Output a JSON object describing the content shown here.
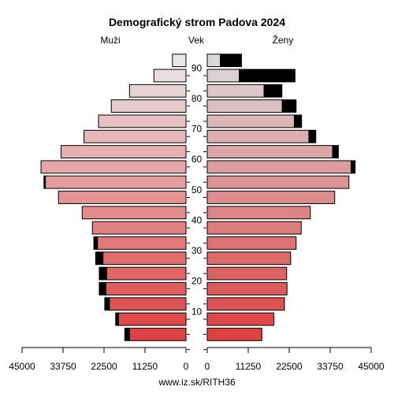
{
  "chart_data": {
    "type": "bar",
    "title": "Demografický strom Padova 2024",
    "left_label": "Muži",
    "center_label": "Vek",
    "right_label": "Ženy",
    "footer": "www.iz.sk/RITH36",
    "x_max": 45000,
    "x_ticks": [
      0,
      11250,
      22500,
      33750,
      45000
    ],
    "x_tick_labels_left": [
      "45000",
      "33750",
      "22500",
      "11250",
      "0"
    ],
    "x_tick_labels_right": [
      "0",
      "11250",
      "22500",
      "33750",
      "45000"
    ],
    "age_groups": [
      "0-4",
      "5-9",
      "10-14",
      "15-19",
      "20-24",
      "25-29",
      "30-34",
      "35-39",
      "40-44",
      "45-49",
      "50-54",
      "55-59",
      "60-64",
      "65-69",
      "70-74",
      "75-79",
      "80-84",
      "85-89",
      "90+"
    ],
    "age_tick_labels": [
      "10",
      "20",
      "30",
      "40",
      "50",
      "60",
      "70",
      "80",
      "90"
    ],
    "series": [
      {
        "name": "Muži",
        "values": [
          15500,
          18500,
          21000,
          22000,
          21800,
          22800,
          24300,
          25700,
          28500,
          35000,
          38600,
          39800,
          34300,
          28000,
          24000,
          20500,
          15500,
          8800,
          3700
        ]
      },
      {
        "name": "Muži (čierna časť)",
        "values": [
          1300,
          800,
          1300,
          1800,
          2000,
          2000,
          1000,
          0,
          0,
          0,
          400,
          0,
          0,
          0,
          0,
          0,
          0,
          0,
          0
        ]
      },
      {
        "name": "Ženy",
        "values": [
          15000,
          18300,
          21200,
          21900,
          21800,
          22900,
          24400,
          25800,
          28300,
          35000,
          38900,
          39500,
          34400,
          27900,
          23900,
          20600,
          15600,
          8800,
          3600
        ]
      },
      {
        "name": "Ženy (čierna časť)",
        "values": [
          0,
          0,
          0,
          0,
          0,
          0,
          0,
          0,
          0,
          0,
          0,
          1100,
          1600,
          1900,
          2000,
          3800,
          4900,
          15300,
          5800
        ]
      }
    ]
  }
}
